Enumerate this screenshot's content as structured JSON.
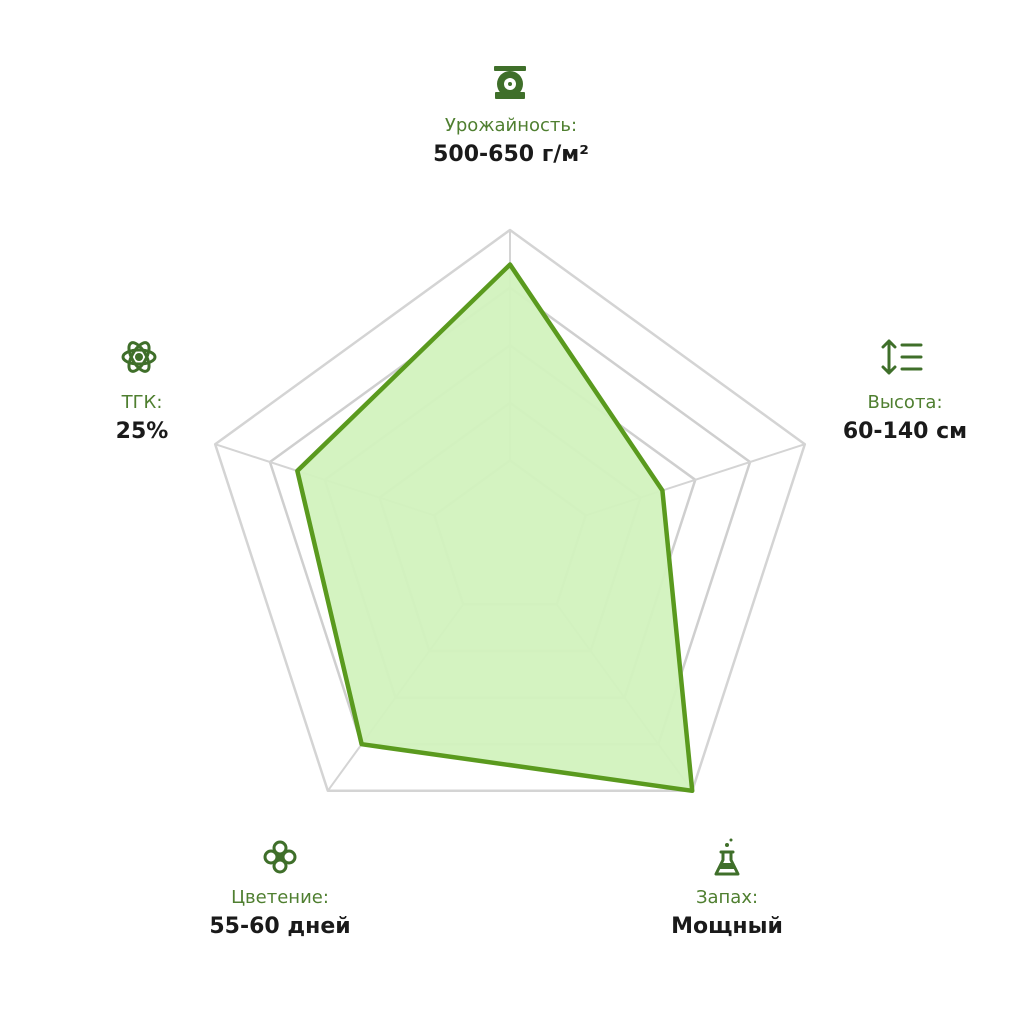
{
  "chart_data": {
    "type": "radar",
    "categories": [
      "Урожайность:",
      "Высота:",
      "Запах:",
      "Цветение:",
      "ТГК:"
    ],
    "descriptions": [
      "500-650 г/м²",
      "60-140 см",
      "Мощный",
      "55-60 дней",
      "25%"
    ],
    "values": [
      4.4,
      2.4,
      5,
      4,
      3.5
    ],
    "ylim": [
      0,
      5
    ],
    "yticks": [
      1,
      2,
      3,
      4,
      5
    ],
    "color": "#5a9a1e",
    "fill": "#d2f2be",
    "grid": true
  }
}
